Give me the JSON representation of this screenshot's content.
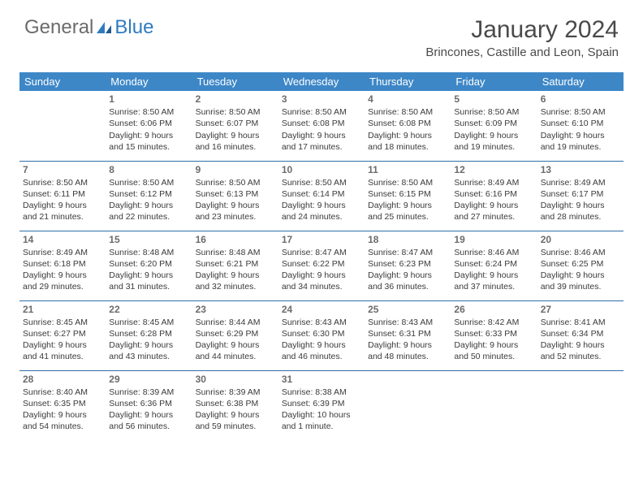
{
  "logo": {
    "text1": "General",
    "text2": "Blue"
  },
  "title": "January 2024",
  "location": "Brincones, Castille and Leon, Spain",
  "colors": {
    "header_bg": "#3d87c7",
    "header_text": "#ffffff",
    "border": "#2f6fa8",
    "logo_gray": "#6b6b6b",
    "logo_blue": "#2f7bbf"
  },
  "day_headers": [
    "Sunday",
    "Monday",
    "Tuesday",
    "Wednesday",
    "Thursday",
    "Friday",
    "Saturday"
  ],
  "weeks": [
    [
      null,
      {
        "n": "1",
        "sr": "8:50 AM",
        "ss": "6:06 PM",
        "dl": "9 hours and 15 minutes."
      },
      {
        "n": "2",
        "sr": "8:50 AM",
        "ss": "6:07 PM",
        "dl": "9 hours and 16 minutes."
      },
      {
        "n": "3",
        "sr": "8:50 AM",
        "ss": "6:08 PM",
        "dl": "9 hours and 17 minutes."
      },
      {
        "n": "4",
        "sr": "8:50 AM",
        "ss": "6:08 PM",
        "dl": "9 hours and 18 minutes."
      },
      {
        "n": "5",
        "sr": "8:50 AM",
        "ss": "6:09 PM",
        "dl": "9 hours and 19 minutes."
      },
      {
        "n": "6",
        "sr": "8:50 AM",
        "ss": "6:10 PM",
        "dl": "9 hours and 19 minutes."
      }
    ],
    [
      {
        "n": "7",
        "sr": "8:50 AM",
        "ss": "6:11 PM",
        "dl": "9 hours and 21 minutes."
      },
      {
        "n": "8",
        "sr": "8:50 AM",
        "ss": "6:12 PM",
        "dl": "9 hours and 22 minutes."
      },
      {
        "n": "9",
        "sr": "8:50 AM",
        "ss": "6:13 PM",
        "dl": "9 hours and 23 minutes."
      },
      {
        "n": "10",
        "sr": "8:50 AM",
        "ss": "6:14 PM",
        "dl": "9 hours and 24 minutes."
      },
      {
        "n": "11",
        "sr": "8:50 AM",
        "ss": "6:15 PM",
        "dl": "9 hours and 25 minutes."
      },
      {
        "n": "12",
        "sr": "8:49 AM",
        "ss": "6:16 PM",
        "dl": "9 hours and 27 minutes."
      },
      {
        "n": "13",
        "sr": "8:49 AM",
        "ss": "6:17 PM",
        "dl": "9 hours and 28 minutes."
      }
    ],
    [
      {
        "n": "14",
        "sr": "8:49 AM",
        "ss": "6:18 PM",
        "dl": "9 hours and 29 minutes."
      },
      {
        "n": "15",
        "sr": "8:48 AM",
        "ss": "6:20 PM",
        "dl": "9 hours and 31 minutes."
      },
      {
        "n": "16",
        "sr": "8:48 AM",
        "ss": "6:21 PM",
        "dl": "9 hours and 32 minutes."
      },
      {
        "n": "17",
        "sr": "8:47 AM",
        "ss": "6:22 PM",
        "dl": "9 hours and 34 minutes."
      },
      {
        "n": "18",
        "sr": "8:47 AM",
        "ss": "6:23 PM",
        "dl": "9 hours and 36 minutes."
      },
      {
        "n": "19",
        "sr": "8:46 AM",
        "ss": "6:24 PM",
        "dl": "9 hours and 37 minutes."
      },
      {
        "n": "20",
        "sr": "8:46 AM",
        "ss": "6:25 PM",
        "dl": "9 hours and 39 minutes."
      }
    ],
    [
      {
        "n": "21",
        "sr": "8:45 AM",
        "ss": "6:27 PM",
        "dl": "9 hours and 41 minutes."
      },
      {
        "n": "22",
        "sr": "8:45 AM",
        "ss": "6:28 PM",
        "dl": "9 hours and 43 minutes."
      },
      {
        "n": "23",
        "sr": "8:44 AM",
        "ss": "6:29 PM",
        "dl": "9 hours and 44 minutes."
      },
      {
        "n": "24",
        "sr": "8:43 AM",
        "ss": "6:30 PM",
        "dl": "9 hours and 46 minutes."
      },
      {
        "n": "25",
        "sr": "8:43 AM",
        "ss": "6:31 PM",
        "dl": "9 hours and 48 minutes."
      },
      {
        "n": "26",
        "sr": "8:42 AM",
        "ss": "6:33 PM",
        "dl": "9 hours and 50 minutes."
      },
      {
        "n": "27",
        "sr": "8:41 AM",
        "ss": "6:34 PM",
        "dl": "9 hours and 52 minutes."
      }
    ],
    [
      {
        "n": "28",
        "sr": "8:40 AM",
        "ss": "6:35 PM",
        "dl": "9 hours and 54 minutes."
      },
      {
        "n": "29",
        "sr": "8:39 AM",
        "ss": "6:36 PM",
        "dl": "9 hours and 56 minutes."
      },
      {
        "n": "30",
        "sr": "8:39 AM",
        "ss": "6:38 PM",
        "dl": "9 hours and 59 minutes."
      },
      {
        "n": "31",
        "sr": "8:38 AM",
        "ss": "6:39 PM",
        "dl": "10 hours and 1 minute."
      },
      null,
      null,
      null
    ]
  ],
  "labels": {
    "sunrise": "Sunrise: ",
    "sunset": "Sunset: ",
    "daylight": "Daylight: "
  }
}
